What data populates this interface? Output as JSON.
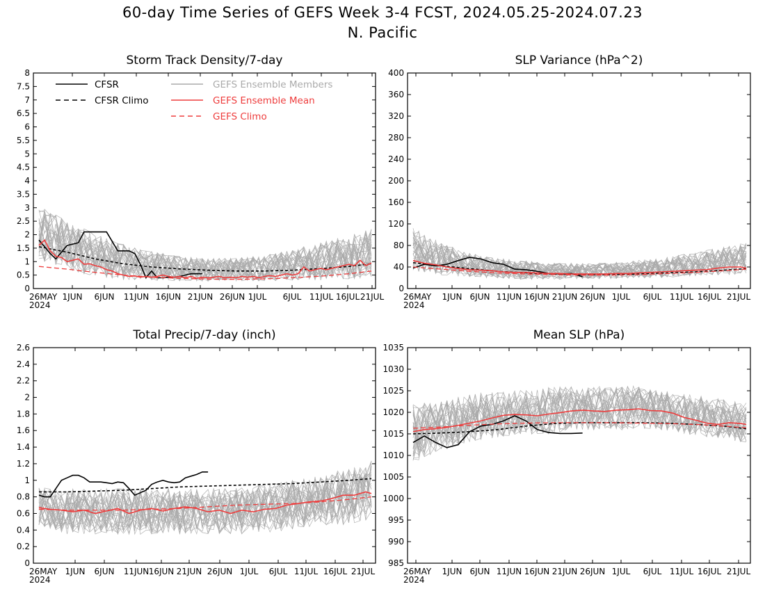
{
  "title_line1": "60-day Time Series of GEFS Week 3-4 FCST, 2024.05.25-2024.07.23",
  "title_line2": "N. Pacific",
  "colors": {
    "members": "#aaaaaa",
    "mean": "#ee3c3c",
    "gefs_climo": "#ee3c3c",
    "cfsr": "#000000",
    "cfsr_climo": "#000000"
  },
  "legend": [
    {
      "label": "CFSR",
      "color": "#000000",
      "dash": false
    },
    {
      "label": "CFSR Climo",
      "color": "#000000",
      "dash": true
    },
    {
      "label": "GEFS Ensemble Members",
      "color": "#aaaaaa",
      "dash": false
    },
    {
      "label": "GEFS Ensemble Mean",
      "color": "#ee3c3c",
      "dash": false
    },
    {
      "label": "GEFS Climo",
      "color": "#ee3c3c",
      "dash": true
    }
  ],
  "chart_data": [
    {
      "type": "line",
      "title": "Storm Track Density/7-day",
      "x_ticks": [
        "26MAY\n2024",
        "1JUN",
        "6JUN",
        "11JUN",
        "16JUN",
        "21JUN",
        "26JUN",
        "1JUL",
        "6JUL",
        "11JUL",
        "16JUL",
        "21JUL"
      ],
      "y_ticks": [
        "0",
        "0.5",
        "1",
        "1.5",
        "2",
        "2.5",
        "3",
        "3.5",
        "4",
        "4.5",
        "5",
        "5.5",
        "6",
        "6.5",
        "7",
        "7.5",
        "8"
      ],
      "ylim": [
        0,
        8
      ],
      "x_range": [
        0,
        59
      ],
      "ensemble_members": {
        "count": 30,
        "band_low": [
          0.9,
          0.5,
          0.3,
          0.2,
          0.2,
          0.2,
          0.2,
          0.2,
          0.2,
          0.2,
          0.2,
          0.2,
          0.2
        ],
        "band_high": [
          3.3,
          2.7,
          2.2,
          1.8,
          1.5,
          1.3,
          1.2,
          1.2,
          1.3,
          1.5,
          1.8,
          2.1,
          2.4
        ]
      },
      "series": [
        {
          "name": "CFSR",
          "x": [
            0,
            1,
            2,
            3,
            4,
            5,
            6,
            7,
            8,
            9,
            10,
            11,
            12,
            13,
            14,
            15,
            16,
            17,
            18,
            19,
            20,
            21,
            22,
            23,
            24,
            25,
            26,
            27,
            28,
            29
          ],
          "y": [
            1.8,
            1.55,
            1.3,
            1.1,
            1.35,
            1.6,
            1.65,
            1.7,
            2.1,
            2.1,
            2.1,
            2.1,
            2.1,
            1.75,
            1.4,
            1.4,
            1.4,
            1.3,
            0.9,
            0.4,
            0.65,
            0.4,
            0.4,
            0.42,
            0.42,
            0.45,
            0.5,
            0.55,
            0.55,
            0.55
          ]
        },
        {
          "name": "CFSR Climo",
          "x": [
            0,
            5,
            10,
            15,
            20,
            25,
            30,
            35,
            40,
            45,
            50,
            55,
            59
          ],
          "y": [
            1.55,
            1.35,
            1.1,
            0.92,
            0.8,
            0.73,
            0.68,
            0.65,
            0.65,
            0.68,
            0.74,
            0.82,
            0.92
          ]
        },
        {
          "name": "GEFS Ensemble Mean",
          "x": [
            0,
            1,
            2,
            3,
            4,
            5,
            6,
            7,
            8,
            9,
            10,
            11,
            12,
            13,
            14,
            15,
            16,
            17,
            18,
            19,
            20,
            21,
            22,
            23,
            24,
            25,
            26,
            27,
            28,
            29,
            30,
            31,
            32,
            33,
            34,
            35,
            36,
            37,
            38,
            39,
            40,
            41,
            42,
            43,
            44,
            45,
            46,
            47,
            48,
            49,
            50,
            51,
            52,
            53,
            54,
            55,
            56,
            57,
            58,
            59
          ],
          "y": [
            1.6,
            1.8,
            1.4,
            1.2,
            1.15,
            1.0,
            1.05,
            1.1,
            0.9,
            0.92,
            0.85,
            0.8,
            0.7,
            0.65,
            0.55,
            0.5,
            0.45,
            0.47,
            0.42,
            0.45,
            0.42,
            0.45,
            0.5,
            0.45,
            0.42,
            0.45,
            0.4,
            0.45,
            0.38,
            0.42,
            0.4,
            0.42,
            0.45,
            0.4,
            0.42,
            0.4,
            0.45,
            0.42,
            0.45,
            0.4,
            0.45,
            0.48,
            0.45,
            0.5,
            0.55,
            0.5,
            0.55,
            0.8,
            0.65,
            0.7,
            0.75,
            0.7,
            0.75,
            0.8,
            0.85,
            0.9,
            0.85,
            1.05,
            0.85,
            0.95
          ]
        },
        {
          "name": "GEFS Climo",
          "x": [
            0,
            5,
            10,
            15,
            20,
            25,
            30,
            35,
            40,
            45,
            50,
            55,
            59
          ],
          "y": [
            0.82,
            0.72,
            0.6,
            0.5,
            0.42,
            0.38,
            0.35,
            0.34,
            0.36,
            0.4,
            0.46,
            0.55,
            0.65
          ]
        }
      ]
    },
    {
      "type": "line",
      "title": "SLP Variance (hPa^2)",
      "x_ticks": [
        "26MAY\n2024",
        "1JUN",
        "6JUN",
        "11JUN",
        "16JUN",
        "21JUN",
        "26JUN",
        "1JUL",
        "6JUL",
        "11JUL",
        "16JUL",
        "21JUL"
      ],
      "y_ticks": [
        "0",
        "40",
        "80",
        "120",
        "160",
        "200",
        "240",
        "280",
        "320",
        "360",
        "400"
      ],
      "ylim": [
        0,
        400
      ],
      "x_range": [
        0,
        59
      ],
      "ensemble_members": {
        "count": 30,
        "band_low": [
          25,
          20,
          18,
          15,
          14,
          14,
          15,
          15,
          16,
          17,
          18,
          20,
          22
        ],
        "band_high": [
          120,
          90,
          70,
          60,
          55,
          50,
          50,
          50,
          55,
          60,
          70,
          80,
          90
        ]
      },
      "series": [
        {
          "name": "CFSR",
          "x": [
            0,
            2,
            4,
            6,
            8,
            10,
            12,
            14,
            16,
            18,
            20,
            22,
            24,
            26,
            28,
            30
          ],
          "y": [
            38,
            45,
            42,
            45,
            52,
            58,
            55,
            48,
            45,
            36,
            35,
            32,
            28,
            27,
            28,
            22
          ]
        },
        {
          "name": "CFSR Climo",
          "x": [
            0,
            5,
            10,
            15,
            20,
            25,
            30,
            35,
            40,
            45,
            50,
            55,
            59
          ],
          "y": [
            48,
            42,
            37,
            32,
            29,
            27,
            26,
            26,
            27,
            29,
            31,
            34,
            37
          ]
        },
        {
          "name": "GEFS Ensemble Mean",
          "x": [
            0,
            2,
            4,
            6,
            8,
            10,
            12,
            14,
            16,
            18,
            20,
            22,
            24,
            26,
            28,
            30,
            32,
            34,
            36,
            38,
            40,
            42,
            44,
            46,
            48,
            50,
            52,
            54,
            56,
            58,
            59
          ],
          "y": [
            52,
            47,
            44,
            40,
            37,
            35,
            34,
            33,
            31,
            30,
            30,
            29,
            28,
            28,
            27,
            27,
            27,
            27,
            28,
            28,
            29,
            30,
            31,
            32,
            33,
            34,
            35,
            38,
            40,
            40,
            38
          ]
        },
        {
          "name": "GEFS Climo",
          "x": [
            0,
            5,
            10,
            15,
            20,
            25,
            30,
            35,
            40,
            45,
            50,
            55,
            59
          ],
          "y": [
            40,
            36,
            32,
            29,
            27,
            26,
            25,
            25,
            26,
            28,
            30,
            33,
            36
          ]
        }
      ]
    },
    {
      "type": "line",
      "title": "Total Precip/7-day (inch)",
      "x_ticks": [
        "26MAY\n2024",
        "1JUN",
        "6JUN",
        "11JUN",
        "16JUN",
        "21JUN",
        "26JUN",
        "1JUL",
        "6JUL",
        "11JUL",
        "16JUL",
        "21JUL"
      ],
      "y_ticks": [
        "0",
        "0.2",
        "0.4",
        "0.6",
        "0.8",
        "1",
        "1.2",
        "1.4",
        "1.6",
        "1.8",
        "2",
        "2.2",
        "2.4",
        "2.6"
      ],
      "ylim": [
        0,
        2.6
      ],
      "x_range": [
        0,
        59
      ],
      "ensemble_members": {
        "count": 30,
        "band_low": [
          0.4,
          0.3,
          0.3,
          0.3,
          0.3,
          0.3,
          0.3,
          0.3,
          0.3,
          0.35,
          0.4,
          0.4,
          0.45
        ],
        "band_high": [
          0.95,
          0.95,
          0.95,
          0.95,
          0.95,
          0.95,
          0.95,
          0.95,
          1.0,
          1.05,
          1.1,
          1.2,
          1.3
        ]
      },
      "series": [
        {
          "name": "CFSR",
          "x": [
            0,
            1,
            2,
            3,
            4,
            5,
            6,
            7,
            8,
            9,
            10,
            11,
            12,
            13,
            14,
            15,
            16,
            17,
            18,
            19,
            20,
            21,
            22,
            23,
            24,
            25,
            26,
            27,
            28,
            29,
            30
          ],
          "y": [
            0.82,
            0.8,
            0.8,
            0.9,
            1.0,
            1.03,
            1.06,
            1.06,
            1.03,
            0.98,
            0.98,
            0.98,
            0.97,
            0.96,
            0.98,
            0.97,
            0.9,
            0.82,
            0.85,
            0.88,
            0.95,
            0.98,
            1.0,
            0.98,
            0.97,
            0.98,
            1.03,
            1.05,
            1.07,
            1.1,
            1.1
          ]
        },
        {
          "name": "CFSR Climo",
          "x": [
            0,
            5,
            10,
            15,
            20,
            25,
            30,
            35,
            40,
            45,
            50,
            55,
            59
          ],
          "y": [
            0.86,
            0.86,
            0.87,
            0.88,
            0.9,
            0.92,
            0.93,
            0.94,
            0.95,
            0.96,
            0.98,
            1.0,
            1.02
          ]
        },
        {
          "name": "GEFS Ensemble Mean",
          "x": [
            0,
            2,
            4,
            6,
            8,
            10,
            12,
            14,
            16,
            18,
            20,
            22,
            24,
            26,
            28,
            30,
            32,
            34,
            36,
            38,
            40,
            42,
            44,
            46,
            48,
            50,
            52,
            54,
            56,
            58,
            59
          ],
          "y": [
            0.67,
            0.65,
            0.64,
            0.62,
            0.64,
            0.6,
            0.63,
            0.66,
            0.6,
            0.64,
            0.66,
            0.63,
            0.66,
            0.68,
            0.66,
            0.62,
            0.64,
            0.6,
            0.64,
            0.62,
            0.65,
            0.66,
            0.7,
            0.72,
            0.74,
            0.75,
            0.78,
            0.82,
            0.82,
            0.86,
            0.84
          ]
        },
        {
          "name": "GEFS Climo",
          "x": [
            0,
            5,
            10,
            15,
            20,
            25,
            30,
            35,
            40,
            45,
            50,
            55,
            59
          ],
          "y": [
            0.65,
            0.64,
            0.64,
            0.64,
            0.65,
            0.66,
            0.68,
            0.7,
            0.71,
            0.72,
            0.74,
            0.77,
            0.8
          ]
        }
      ]
    },
    {
      "type": "line",
      "title": "Mean SLP (hPa)",
      "x_ticks": [
        "26MAY\n2024",
        "1JUN",
        "6JUN",
        "11JUN",
        "16JUN",
        "21JUN",
        "26JUN",
        "1JUL",
        "6JUL",
        "11JUL",
        "16JUL",
        "21JUL"
      ],
      "y_ticks": [
        "985",
        "990",
        "995",
        "1000",
        "1005",
        "1010",
        "1015",
        "1020",
        "1025",
        "1030",
        "1035"
      ],
      "ylim": [
        985,
        1035
      ],
      "x_range": [
        0,
        59
      ],
      "ensemble_members": {
        "count": 30,
        "band_low": [
          1007,
          1010,
          1012,
          1013,
          1014,
          1014,
          1015,
          1015,
          1015,
          1015,
          1014,
          1013,
          1012
        ],
        "band_high": [
          1023,
          1024,
          1025,
          1026,
          1026,
          1027,
          1027,
          1027,
          1027,
          1026,
          1025,
          1024,
          1023
        ]
      },
      "series": [
        {
          "name": "CFSR",
          "x": [
            0,
            2,
            4,
            6,
            8,
            10,
            12,
            14,
            16,
            18,
            20,
            22,
            24,
            26,
            28,
            30
          ],
          "y": [
            1013,
            1014.5,
            1013,
            1011.8,
            1012.5,
            1015.5,
            1016.8,
            1017.2,
            1018,
            1019.2,
            1018,
            1016,
            1015.3,
            1015.1,
            1015.1,
            1015.2
          ]
        },
        {
          "name": "CFSR Climo",
          "x": [
            0,
            5,
            10,
            15,
            20,
            25,
            30,
            35,
            40,
            45,
            50,
            55,
            59
          ],
          "y": [
            1015,
            1015.2,
            1015.5,
            1016,
            1016.8,
            1017.4,
            1017.6,
            1017.6,
            1017.6,
            1017.5,
            1017.2,
            1016.8,
            1016.2
          ]
        },
        {
          "name": "GEFS Ensemble Mean",
          "x": [
            0,
            2,
            4,
            6,
            8,
            10,
            12,
            14,
            16,
            18,
            20,
            22,
            24,
            26,
            28,
            30,
            32,
            34,
            36,
            38,
            40,
            42,
            44,
            46,
            48,
            50,
            52,
            54,
            56,
            58,
            59
          ],
          "y": [
            1015.5,
            1016,
            1016.2,
            1016.5,
            1017,
            1017.5,
            1018,
            1018.7,
            1019.3,
            1019.5,
            1019.4,
            1019.2,
            1019.6,
            1019.9,
            1020.3,
            1020.5,
            1020.3,
            1020.2,
            1020.5,
            1020.6,
            1020.8,
            1020.4,
            1020.3,
            1019.8,
            1018.8,
            1018.2,
            1017.5,
            1017.2,
            1017.6,
            1017.4,
            1017.2
          ]
        },
        {
          "name": "GEFS Climo",
          "x": [
            0,
            5,
            10,
            15,
            20,
            25,
            30,
            35,
            40,
            45,
            50,
            55,
            59
          ],
          "y": [
            1016.3,
            1016.6,
            1017,
            1017.3,
            1017.5,
            1017.6,
            1017.6,
            1017.6,
            1017.5,
            1017.4,
            1017.2,
            1016.8,
            1016.4
          ]
        }
      ]
    }
  ]
}
